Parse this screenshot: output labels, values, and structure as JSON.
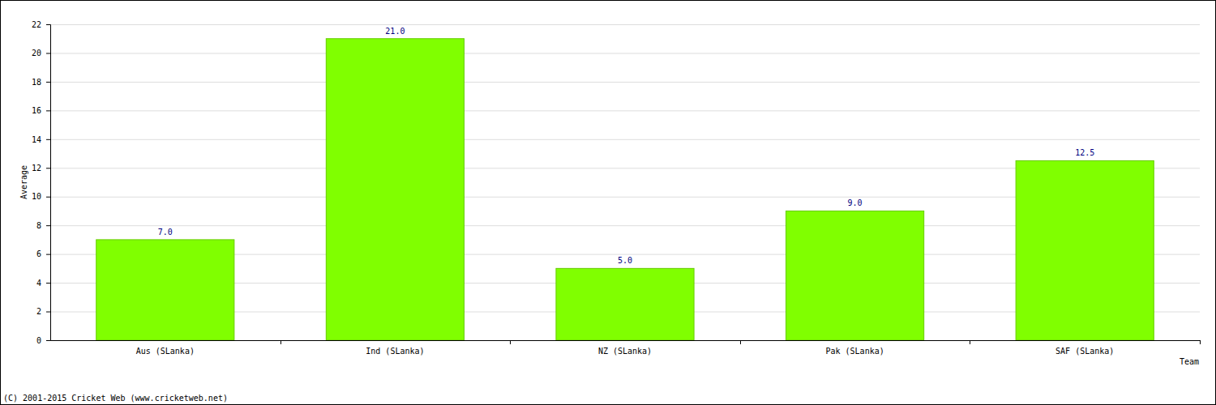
{
  "chart_data": {
    "type": "bar",
    "categories": [
      "Aus (SLanka)",
      "Ind (SLanka)",
      "NZ (SLanka)",
      "Pak (SLanka)",
      "SAF (SLanka)"
    ],
    "values": [
      7.0,
      21.0,
      5.0,
      9.0,
      12.5
    ],
    "value_labels": [
      "7.0",
      "21.0",
      "5.0",
      "9.0",
      "12.5"
    ],
    "data_labels": true,
    "color": "#80ff00",
    "x_label": "Team",
    "y_label": "Average",
    "annotations": [
      "(C) 2001-2015 Cricket Web (www.cricketweb.net)"
    ],
    "ylim": [
      0,
      22
    ],
    "yticks": [
      0,
      2,
      4,
      6,
      8,
      10,
      12,
      14,
      16,
      18,
      20,
      22
    ],
    "grid": true
  }
}
